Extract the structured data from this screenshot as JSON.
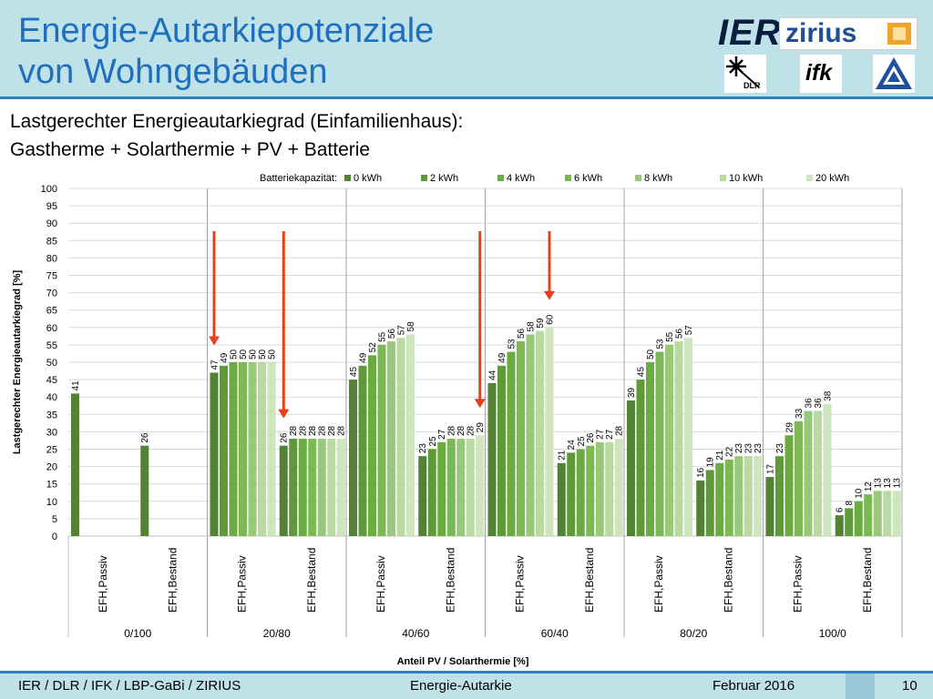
{
  "slide": {
    "title_line1": "Energie-Autarkiepotenziale",
    "title_line2": "von Wohngebäuden",
    "subtitle_line1": "Lastgerechter Energieautarkiegrad (Einfamilienhaus):",
    "subtitle_line2": "Gastherme + Solarthermie + PV + Batterie",
    "logos": {
      "ier": "IER",
      "zirius": "zirius",
      "dlr": "DLR",
      "ifk": "ifk"
    },
    "footer": {
      "left": "IER / DLR / IFK / LBP-GaBi / ZIRIUS",
      "center": "Energie-Autarkie",
      "date": "Februar 2016",
      "page": "10"
    }
  },
  "colors": {
    "header": "#bfe1e8",
    "title": "#1f6fbf",
    "arrow": "#e8401c",
    "series": [
      "#548235",
      "#5e9a38",
      "#6bac42",
      "#7cb955",
      "#98c979",
      "#b9daa0",
      "#cfe5bd"
    ]
  },
  "chart_data": {
    "type": "bar",
    "ylabel": "Lastgerechter Energieautarkiegrad [%]",
    "xlabel": "Anteil PV / Solarthermie [%]",
    "ylim": [
      0,
      100
    ],
    "yticks": [
      0,
      5,
      10,
      15,
      20,
      25,
      30,
      35,
      40,
      45,
      50,
      55,
      60,
      65,
      70,
      75,
      80,
      85,
      90,
      95,
      100
    ],
    "grid": true,
    "legend_title": "Batteriekapazität:",
    "legend_position": "top",
    "series_names": [
      "0 kWh",
      "2 kWh",
      "4 kWh",
      "6 kWh",
      "8 kWh",
      "10 kWh",
      "20 kWh"
    ],
    "groups": [
      {
        "label": "0/100",
        "categories": [
          {
            "label": "EFH,Passiv",
            "values": [
              41
            ]
          },
          {
            "label": "EFH,Bestand",
            "values": [
              26
            ]
          }
        ]
      },
      {
        "label": "20/80",
        "categories": [
          {
            "label": "EFH,Passiv",
            "values": [
              47,
              49,
              50,
              50,
              50,
              50,
              50
            ]
          },
          {
            "label": "EFH,Bestand",
            "values": [
              26,
              28,
              28,
              28,
              28,
              28,
              28
            ]
          }
        ]
      },
      {
        "label": "40/60",
        "categories": [
          {
            "label": "EFH,Passiv",
            "values": [
              45,
              49,
              52,
              55,
              56,
              57,
              58
            ]
          },
          {
            "label": "EFH,Bestand",
            "values": [
              23,
              25,
              27,
              28,
              28,
              28,
              29
            ]
          }
        ]
      },
      {
        "label": "60/40",
        "categories": [
          {
            "label": "EFH,Passiv",
            "values": [
              44,
              49,
              53,
              56,
              58,
              59,
              60
            ]
          },
          {
            "label": "EFH,Bestand",
            "values": [
              21,
              24,
              25,
              26,
              27,
              27,
              28
            ]
          }
        ]
      },
      {
        "label": "80/20",
        "categories": [
          {
            "label": "EFH,Passiv",
            "values": [
              39,
              45,
              50,
              53,
              55,
              56,
              57
            ]
          },
          {
            "label": "EFH,Bestand",
            "values": [
              16,
              19,
              21,
              22,
              23,
              23,
              23
            ]
          }
        ]
      },
      {
        "label": "100/0",
        "categories": [
          {
            "label": "EFH,Passiv",
            "values": [
              17,
              23,
              29,
              33,
              36,
              36,
              38
            ]
          },
          {
            "label": "EFH,Bestand",
            "values": [
              6,
              8,
              10,
              12,
              13,
              13,
              13
            ]
          }
        ]
      }
    ],
    "annotations": [
      {
        "type": "arrow",
        "group": 1,
        "category": 0,
        "series": 0
      },
      {
        "type": "arrow",
        "group": 1,
        "category": 1,
        "series": 0
      },
      {
        "type": "arrow",
        "group": 2,
        "category": 1,
        "series": 6
      },
      {
        "type": "arrow",
        "group": 3,
        "category": 0,
        "series": 6
      }
    ]
  }
}
